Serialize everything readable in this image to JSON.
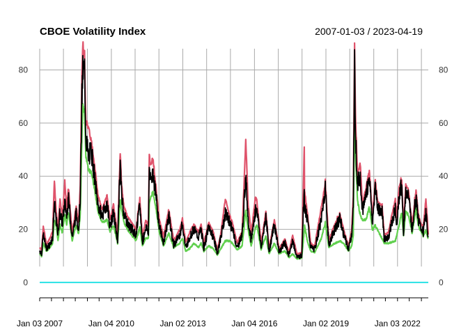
{
  "chart_data": {
    "type": "line",
    "title": "CBOE Volatility Index",
    "date_range_label": "2007-01-03 / 2023-04-19",
    "x_start": "2007-01-03",
    "x_end": "2023-04-19",
    "ylim": [
      -5,
      88
    ],
    "yticks": [
      0,
      20,
      40,
      60,
      80
    ],
    "x_tick_labels": [
      {
        "date": "2007-01-03",
        "label": "Jan 03 2007"
      },
      {
        "date": "2010-01-04",
        "label": "Jan 04 2010"
      },
      {
        "date": "2013-01-02",
        "label": "Jan 02 2013"
      },
      {
        "date": "2016-01-04",
        "label": "Jan 04 2016"
      },
      {
        "date": "2019-01-02",
        "label": "Jan 02 2019"
      },
      {
        "date": "2022-01-03",
        "label": "Jan 03 2022"
      }
    ],
    "minor_tick_dates": [
      "2007-01-03",
      "2007-07-02",
      "2008-01-02",
      "2008-07-01",
      "2009-01-02",
      "2009-07-01",
      "2010-01-04",
      "2010-07-01",
      "2011-01-03",
      "2011-07-01",
      "2012-01-03",
      "2012-07-02",
      "2013-01-02",
      "2013-07-01",
      "2014-01-02",
      "2014-07-01",
      "2015-01-02",
      "2015-07-01",
      "2016-01-04",
      "2016-07-01",
      "2017-01-03",
      "2017-07-03",
      "2018-01-02",
      "2018-07-02",
      "2019-01-02",
      "2019-07-01",
      "2020-01-02",
      "2020-07-01",
      "2021-01-04",
      "2021-07-01",
      "2022-01-03",
      "2022-07-01",
      "2023-01-03"
    ],
    "grid": true,
    "grid_line_dates": [
      "2007-01-03",
      "2008-01-02",
      "2009-01-02",
      "2010-01-04",
      "2011-01-03",
      "2012-01-03",
      "2013-01-02",
      "2014-01-02",
      "2015-01-02",
      "2016-01-04",
      "2017-01-03",
      "2018-01-02",
      "2019-01-02",
      "2020-01-02",
      "2021-01-04",
      "2022-01-03",
      "2023-01-03"
    ],
    "series": [
      {
        "role": "high",
        "color": "#df536b"
      },
      {
        "role": "low",
        "color": "#61d04f"
      },
      {
        "role": "close",
        "color": "#000000"
      },
      {
        "role": "volume",
        "color": "#28e2e5",
        "constant_value": 0
      }
    ],
    "points": [
      [
        "2007-01-03",
        12.0,
        12.8,
        11.0
      ],
      [
        "2007-02-01",
        11.0,
        12.0,
        10.0
      ],
      [
        "2007-02-27",
        18.0,
        20.5,
        15.0
      ],
      [
        "2007-03-15",
        16.0,
        19.0,
        14.0
      ],
      [
        "2007-04-15",
        13.0,
        14.0,
        12.0
      ],
      [
        "2007-06-01",
        14.0,
        16.0,
        13.0
      ],
      [
        "2007-07-20",
        17.0,
        19.0,
        15.0
      ],
      [
        "2007-08-16",
        30.0,
        37.5,
        24.0
      ],
      [
        "2007-09-10",
        24.0,
        27.0,
        22.0
      ],
      [
        "2007-10-10",
        18.0,
        20.0,
        16.0
      ],
      [
        "2007-11-10",
        27.0,
        31.0,
        22.0
      ],
      [
        "2007-12-15",
        22.0,
        24.0,
        19.0
      ],
      [
        "2008-01-22",
        30.0,
        37.5,
        26.0
      ],
      [
        "2008-02-20",
        25.0,
        27.0,
        22.0
      ],
      [
        "2008-03-17",
        32.0,
        35.0,
        27.0
      ],
      [
        "2008-05-15",
        17.0,
        18.5,
        16.0
      ],
      [
        "2008-07-15",
        26.0,
        28.0,
        22.0
      ],
      [
        "2008-08-20",
        20.0,
        22.0,
        18.5
      ],
      [
        "2008-09-15",
        32.0,
        36.0,
        26.0
      ],
      [
        "2008-10-10",
        69.0,
        76.0,
        55.0
      ],
      [
        "2008-10-24",
        79.0,
        89.0,
        68.0
      ],
      [
        "2008-11-20",
        80.0,
        81.5,
        65.0
      ],
      [
        "2008-12-10",
        55.0,
        60.0,
        48.0
      ],
      [
        "2009-01-20",
        47.0,
        57.0,
        43.0
      ],
      [
        "2009-03-05",
        50.0,
        52.0,
        42.0
      ],
      [
        "2009-04-20",
        40.0,
        44.0,
        36.0
      ],
      [
        "2009-06-15",
        29.0,
        32.0,
        27.0
      ],
      [
        "2009-08-15",
        25.0,
        27.0,
        23.0
      ],
      [
        "2009-10-30",
        30.0,
        32.0,
        24.0
      ],
      [
        "2009-12-15",
        21.0,
        23.0,
        19.5
      ],
      [
        "2010-02-05",
        26.0,
        29.0,
        22.0
      ],
      [
        "2010-04-10",
        16.0,
        17.5,
        15.0
      ],
      [
        "2010-05-20",
        45.0,
        48.0,
        32.0
      ],
      [
        "2010-06-10",
        33.0,
        36.0,
        28.0
      ],
      [
        "2010-07-15",
        26.0,
        28.0,
        23.0
      ],
      [
        "2010-09-15",
        22.0,
        24.0,
        20.0
      ],
      [
        "2010-11-15",
        20.0,
        22.0,
        18.0
      ],
      [
        "2011-01-15",
        18.0,
        19.5,
        16.0
      ],
      [
        "2011-03-16",
        29.0,
        31.0,
        21.0
      ],
      [
        "2011-04-25",
        15.0,
        17.0,
        14.0
      ],
      [
        "2011-06-15",
        21.0,
        23.0,
        17.0
      ],
      [
        "2011-07-25",
        19.0,
        21.0,
        17.0
      ],
      [
        "2011-08-08",
        44.0,
        48.0,
        30.0
      ],
      [
        "2011-08-25",
        38.0,
        43.0,
        32.0
      ],
      [
        "2011-10-03",
        42.0,
        46.0,
        35.0
      ],
      [
        "2011-11-20",
        32.0,
        35.0,
        28.0
      ],
      [
        "2012-01-10",
        21.0,
        23.0,
        19.0
      ],
      [
        "2012-03-15",
        15.0,
        17.0,
        14.0
      ],
      [
        "2012-06-01",
        25.0,
        27.0,
        19.0
      ],
      [
        "2012-08-15",
        14.0,
        15.5,
        13.5
      ],
      [
        "2012-11-15",
        18.0,
        19.5,
        15.0
      ],
      [
        "2012-12-28",
        22.0,
        23.5,
        17.0
      ],
      [
        "2013-02-15",
        13.0,
        15.0,
        12.0
      ],
      [
        "2013-04-18",
        17.0,
        18.5,
        13.0
      ],
      [
        "2013-06-20",
        20.0,
        21.5,
        15.0
      ],
      [
        "2013-08-30",
        17.0,
        18.5,
        13.5
      ],
      [
        "2013-10-09",
        20.0,
        21.5,
        15.0
      ],
      [
        "2013-11-20",
        13.0,
        14.5,
        12.0
      ],
      [
        "2014-02-03",
        21.0,
        22.0,
        14.0
      ],
      [
        "2014-04-15",
        17.0,
        18.5,
        13.0
      ],
      [
        "2014-06-15",
        11.0,
        12.0,
        10.5
      ],
      [
        "2014-08-07",
        17.0,
        18.0,
        13.0
      ],
      [
        "2014-10-15",
        26.0,
        31.0,
        16.0
      ],
      [
        "2014-12-16",
        23.0,
        25.0,
        16.0
      ],
      [
        "2015-02-01",
        20.0,
        22.0,
        15.0
      ],
      [
        "2015-04-15",
        13.0,
        14.5,
        12.5
      ],
      [
        "2015-06-30",
        18.0,
        19.0,
        14.0
      ],
      [
        "2015-08-24",
        40.0,
        53.0,
        28.0
      ],
      [
        "2015-09-30",
        24.0,
        29.0,
        20.0
      ],
      [
        "2015-11-15",
        16.0,
        18.0,
        14.0
      ],
      [
        "2016-01-20",
        27.0,
        32.0,
        21.0
      ],
      [
        "2016-02-11",
        28.0,
        30.0,
        22.0
      ],
      [
        "2016-04-15",
        13.0,
        14.5,
        12.5
      ],
      [
        "2016-06-27",
        25.0,
        26.0,
        18.0
      ],
      [
        "2016-08-15",
        11.5,
        12.5,
        11.0
      ],
      [
        "2016-11-04",
        22.0,
        23.0,
        15.0
      ],
      [
        "2017-01-15",
        11.5,
        12.5,
        11.0
      ],
      [
        "2017-04-15",
        15.0,
        16.0,
        12.0
      ],
      [
        "2017-06-15",
        10.0,
        11.0,
        9.5
      ],
      [
        "2017-08-11",
        16.0,
        17.5,
        11.0
      ],
      [
        "2017-10-15",
        9.5,
        10.5,
        9.0
      ],
      [
        "2017-12-28",
        10.0,
        11.0,
        9.5
      ],
      [
        "2018-02-05",
        37.0,
        50.0,
        20.0
      ],
      [
        "2018-02-09",
        29.0,
        34.0,
        22.0
      ],
      [
        "2018-03-23",
        24.0,
        26.0,
        16.0
      ],
      [
        "2018-05-15",
        13.0,
        14.5,
        12.0
      ],
      [
        "2018-07-15",
        12.5,
        13.5,
        11.5
      ],
      [
        "2018-10-25",
        24.0,
        28.0,
        17.0
      ],
      [
        "2018-12-24",
        36.0,
        36.5,
        23.0
      ],
      [
        "2019-02-15",
        14.0,
        15.5,
        13.5
      ],
      [
        "2019-05-15",
        20.0,
        21.5,
        15.0
      ],
      [
        "2019-08-05",
        24.0,
        25.0,
        16.0
      ],
      [
        "2019-10-01",
        18.0,
        19.5,
        15.0
      ],
      [
        "2019-12-15",
        12.5,
        13.5,
        12.0
      ],
      [
        "2020-01-31",
        18.0,
        19.0,
        14.0
      ],
      [
        "2020-02-25",
        28.0,
        32.0,
        18.0
      ],
      [
        "2020-03-16",
        82.0,
        86.0,
        70.0
      ],
      [
        "2020-04-01",
        55.0,
        60.0,
        48.0
      ],
      [
        "2020-05-01",
        37.0,
        40.0,
        31.0
      ],
      [
        "2020-06-11",
        40.0,
        44.0,
        26.0
      ],
      [
        "2020-07-15",
        27.0,
        29.0,
        24.0
      ],
      [
        "2020-09-08",
        33.0,
        35.0,
        24.0
      ],
      [
        "2020-10-28",
        40.0,
        41.0,
        29.0
      ],
      [
        "2020-12-15",
        22.0,
        24.0,
        20.0
      ],
      [
        "2021-01-27",
        37.0,
        37.5,
        22.0
      ],
      [
        "2021-03-05",
        28.0,
        30.0,
        20.0
      ],
      [
        "2021-05-12",
        27.0,
        28.0,
        17.0
      ],
      [
        "2021-06-15",
        16.0,
        17.5,
        15.0
      ],
      [
        "2021-08-15",
        17.0,
        18.5,
        15.0
      ],
      [
        "2021-11-30",
        28.0,
        31.0,
        16.0
      ],
      [
        "2021-12-20",
        22.0,
        24.0,
        18.0
      ],
      [
        "2022-01-27",
        32.0,
        35.0,
        22.0
      ],
      [
        "2022-03-07",
        37.0,
        38.5,
        27.0
      ],
      [
        "2022-04-05",
        19.0,
        20.5,
        18.0
      ],
      [
        "2022-05-09",
        34.0,
        36.0,
        27.0
      ],
      [
        "2022-06-16",
        33.0,
        34.5,
        26.0
      ],
      [
        "2022-08-15",
        20.0,
        21.0,
        19.0
      ],
      [
        "2022-10-13",
        33.0,
        34.0,
        28.0
      ],
      [
        "2022-11-15",
        24.0,
        25.5,
        22.0
      ],
      [
        "2022-12-15",
        21.0,
        22.5,
        20.0
      ],
      [
        "2023-02-01",
        19.0,
        20.5,
        18.0
      ],
      [
        "2023-03-13",
        26.0,
        31.0,
        20.0
      ],
      [
        "2023-04-19",
        17.0,
        18.0,
        16.5
      ]
    ]
  }
}
